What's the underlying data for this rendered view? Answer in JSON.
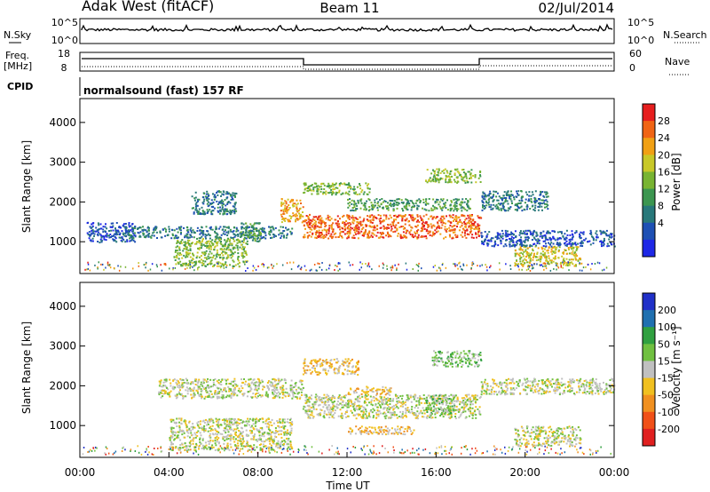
{
  "header": {
    "site": "Adak West (fitACF)",
    "beam": "Beam 11",
    "date": "02/Jul/2014"
  },
  "noise_panel": {
    "left_label": "N.Sky",
    "right_label": "N.Search",
    "yticks_left": [
      "10^5",
      "10^0"
    ],
    "yticks_right": [
      "10^5",
      "10^0"
    ]
  },
  "freq_panel": {
    "left_label_1": "Freq.",
    "left_label_2": "[MHz]",
    "right_label": "Nave",
    "yticks_left": [
      "18",
      "8"
    ],
    "yticks_right": [
      "60",
      "0"
    ]
  },
  "cpid_panel": {
    "label": "CPID",
    "program": "normalsound (fast) 157 RF"
  },
  "chart_data": [
    {
      "type": "heatmap",
      "name": "power",
      "ylabel": "Slant Range [km]",
      "yticks": [
        "1000",
        "2000",
        "3000",
        "4000"
      ],
      "ylim": [
        200,
        4600
      ],
      "colorbar_label": "Power [dB]",
      "colorbar_ticks": [
        "4",
        "8",
        "12",
        "16",
        "20",
        "24",
        "28"
      ],
      "colors": [
        "#1e28e6",
        "#1e50b4",
        "#28787a",
        "#3c9650",
        "#78b432",
        "#c8c828",
        "#f0a014",
        "#f06414",
        "#e61e1e"
      ],
      "regions": [
        {
          "t0": 0.3,
          "t1": 2.5,
          "r0": 1000,
          "r1": 1500,
          "level": 1
        },
        {
          "t0": 2.0,
          "t1": 9.5,
          "r0": 1100,
          "r1": 1400,
          "level": 2
        },
        {
          "t0": 5.0,
          "t1": 7.0,
          "r0": 1700,
          "r1": 2300,
          "level": 2
        },
        {
          "t0": 4.2,
          "t1": 7.5,
          "r0": 400,
          "r1": 1100,
          "level": 4
        },
        {
          "t0": 7.2,
          "t1": 8.1,
          "r0": 1000,
          "r1": 1500,
          "level": 3
        },
        {
          "t0": 9.0,
          "t1": 10.0,
          "r0": 1500,
          "r1": 2100,
          "level": 6
        },
        {
          "t0": 10.0,
          "t1": 18.0,
          "r0": 1100,
          "r1": 1700,
          "level": 7
        },
        {
          "t0": 10.0,
          "t1": 13.0,
          "r0": 2200,
          "r1": 2500,
          "level": 4
        },
        {
          "t0": 15.5,
          "t1": 18.0,
          "r0": 2500,
          "r1": 2850,
          "level": 4
        },
        {
          "t0": 12.0,
          "t1": 17.5,
          "r0": 1800,
          "r1": 2100,
          "level": 3
        },
        {
          "t0": 18.0,
          "t1": 21.0,
          "r0": 1800,
          "r1": 2300,
          "level": 2
        },
        {
          "t0": 19.5,
          "t1": 22.5,
          "r0": 400,
          "r1": 900,
          "level": 5
        },
        {
          "t0": 18.0,
          "t1": 24.0,
          "r0": 900,
          "r1": 1300,
          "level": 1
        }
      ]
    },
    {
      "type": "heatmap",
      "name": "velocity",
      "ylabel": "Slant Range [km]",
      "yticks": [
        "1000",
        "2000",
        "3000",
        "4000"
      ],
      "ylim": [
        200,
        4600
      ],
      "colorbar_label": "Velocity [m s⁻¹]",
      "colorbar_ticks": [
        "200",
        "100",
        "50",
        "15",
        "-15",
        "-50",
        "-100",
        "-200"
      ],
      "colors": [
        "#2030c8",
        "#2070b0",
        "#30a040",
        "#70c040",
        "#c0c0c0",
        "#f0c020",
        "#f09020",
        "#f05018",
        "#e02020"
      ],
      "xticks": [
        "00:00",
        "04:00",
        "08:00",
        "12:00",
        "16:00",
        "20:00",
        "00:00"
      ],
      "xlabel": "Time UT",
      "regions": [
        {
          "t0": 4.0,
          "t1": 9.5,
          "r0": 400,
          "r1": 1200,
          "level": 4
        },
        {
          "t0": 3.5,
          "t1": 10.0,
          "r0": 1700,
          "r1": 2200,
          "level": 4
        },
        {
          "t0": 10.0,
          "t1": 18.0,
          "r0": 1200,
          "r1": 1800,
          "level": 4
        },
        {
          "t0": 12.0,
          "t1": 14.0,
          "r0": 1800,
          "r1": 2000,
          "level": 5
        },
        {
          "t0": 15.5,
          "t1": 16.8,
          "r0": 1300,
          "r1": 1800,
          "level": 3
        },
        {
          "t0": 15.8,
          "t1": 18.0,
          "r0": 2500,
          "r1": 2900,
          "level": 3
        },
        {
          "t0": 10.0,
          "t1": 12.5,
          "r0": 2300,
          "r1": 2700,
          "level": 5
        },
        {
          "t0": 12.0,
          "t1": 15.0,
          "r0": 800,
          "r1": 1000,
          "level": 5
        },
        {
          "t0": 19.5,
          "t1": 22.5,
          "r0": 500,
          "r1": 1000,
          "level": 4
        },
        {
          "t0": 18.0,
          "t1": 24.0,
          "r0": 1800,
          "r1": 2200,
          "level": 4
        }
      ]
    }
  ]
}
